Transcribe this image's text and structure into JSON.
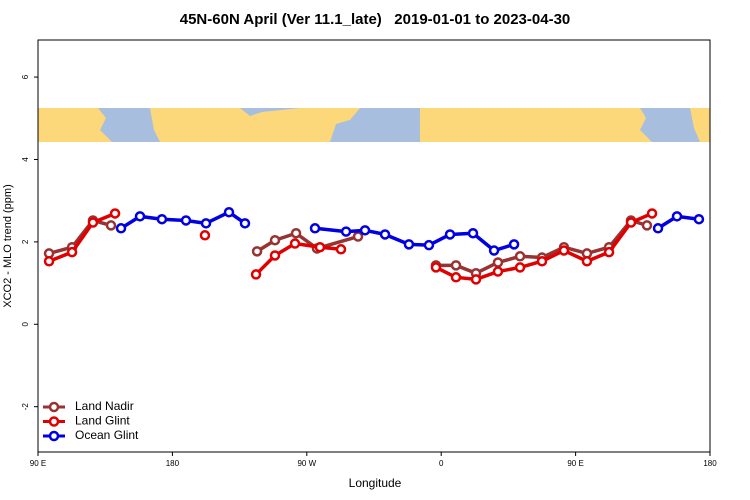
{
  "chart_data": {
    "type": "line",
    "title": "45N-60N April (Ver 11.1_late)   2019-01-01 to 2023-04-30",
    "xlabel": "Longitude",
    "ylabel": "XCO2 - MLO trend (ppm)",
    "xlim": [
      90,
      540
    ],
    "xticks": [
      {
        "value": 90,
        "label": "90 E"
      },
      180,
      {
        "value": 270,
        "label": "90 W"
      },
      {
        "value": 360,
        "label": "0"
      },
      {
        "value": 450,
        "label": "90 E"
      },
      {
        "value": 540,
        "label": "180"
      }
    ],
    "ylim": [
      -3.1,
      6.9
    ],
    "yticks": [
      -2,
      0,
      2,
      4,
      6
    ],
    "legend": "bottom-left",
    "series": [
      {
        "name": "Land Nadir",
        "color": "#993333",
        "x": [
          97.4,
          112.8,
          126.8,
          138.9,
          null,
          236.7,
          248.7,
          262.8,
          276.8,
          304.3,
          null,
          356.5,
          369.9,
          383.3,
          398.0,
          412.8,
          427.5,
          442.2,
          457.6,
          472.4,
          487.1,
          497.8
        ],
        "values": [
          1.72,
          1.87,
          2.52,
          2.4,
          null,
          1.77,
          2.04,
          2.21,
          1.84,
          2.13,
          null,
          1.43,
          1.43,
          1.24,
          1.5,
          1.65,
          1.62,
          1.87,
          1.72,
          1.87,
          2.52,
          2.4
        ]
      },
      {
        "name": "Land Glint",
        "color": "#e00000",
        "x": [
          97.4,
          112.8,
          126.8,
          141.6,
          null,
          201.8,
          null,
          236.0,
          248.7,
          262.1,
          278.8,
          292.9,
          null,
          356.5,
          369.9,
          383.3,
          398.0,
          412.8,
          427.5,
          442.2,
          457.6,
          472.4,
          487.1,
          501.2
        ],
        "values": [
          1.53,
          1.75,
          2.47,
          2.69,
          null,
          2.16,
          null,
          1.21,
          1.67,
          1.96,
          1.87,
          1.82,
          null,
          1.38,
          1.14,
          1.09,
          1.28,
          1.38,
          1.53,
          1.79,
          1.53,
          1.75,
          2.47,
          2.69
        ]
      },
      {
        "name": "Ocean Glint",
        "color": "#0000e0",
        "x": [
          145.6,
          158.3,
          173.0,
          189.1,
          202.5,
          217.9,
          228.6,
          null,
          275.5,
          296.3,
          309.0,
          322.4,
          338.4,
          351.8,
          365.9,
          381.3,
          395.4,
          408.8,
          null,
          505.2,
          517.9,
          532.6
        ],
        "values": [
          2.33,
          2.62,
          2.55,
          2.52,
          2.45,
          2.72,
          2.45,
          null,
          2.33,
          2.25,
          2.28,
          2.18,
          1.94,
          1.92,
          2.18,
          2.21,
          1.79,
          1.94,
          null,
          2.33,
          2.62,
          2.55
        ]
      }
    ]
  }
}
